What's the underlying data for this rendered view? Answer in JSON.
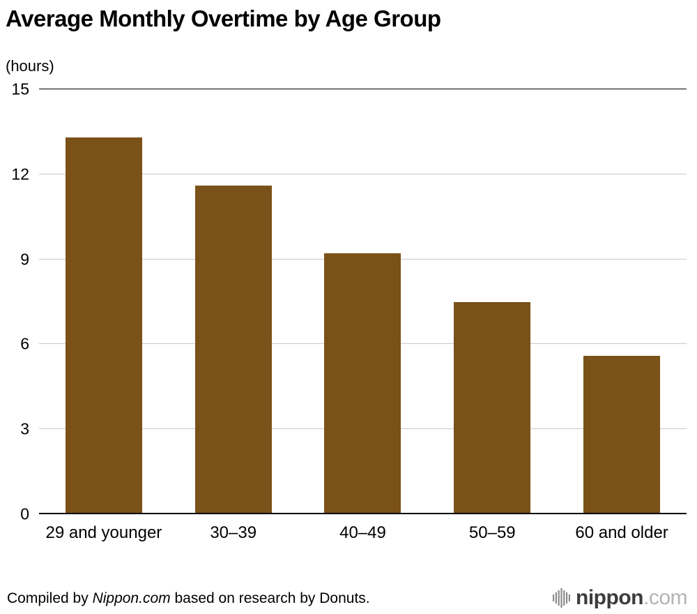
{
  "title": "Average Monthly Overtime by Age Group",
  "unit_label": "(hours)",
  "chart_data": {
    "type": "bar",
    "categories": [
      "29 and younger",
      "30–39",
      "40–49",
      "50–59",
      "60 and older"
    ],
    "values": [
      13.3,
      11.6,
      9.2,
      7.5,
      5.6
    ],
    "title": "Average Monthly Overtime by Age Group",
    "xlabel": "",
    "ylabel": "(hours)",
    "ylim": [
      0,
      15
    ],
    "yticks": [
      0,
      3,
      6,
      9,
      12,
      15
    ],
    "bar_color": "#7a5118",
    "grid": true,
    "legend": "none"
  },
  "footer": {
    "credit_prefix": "Compiled by ",
    "credit_source": "Nippon.com",
    "credit_suffix": " based on research by Donuts.",
    "logo_text_main": "nippon",
    "logo_text_suffix": ".com"
  },
  "colors": {
    "bar": "#7a5118",
    "gridline": "#c9c9c9",
    "axis": "#000000",
    "logo_main": "#3c3c3c",
    "logo_suffix": "#b3b3b3"
  }
}
